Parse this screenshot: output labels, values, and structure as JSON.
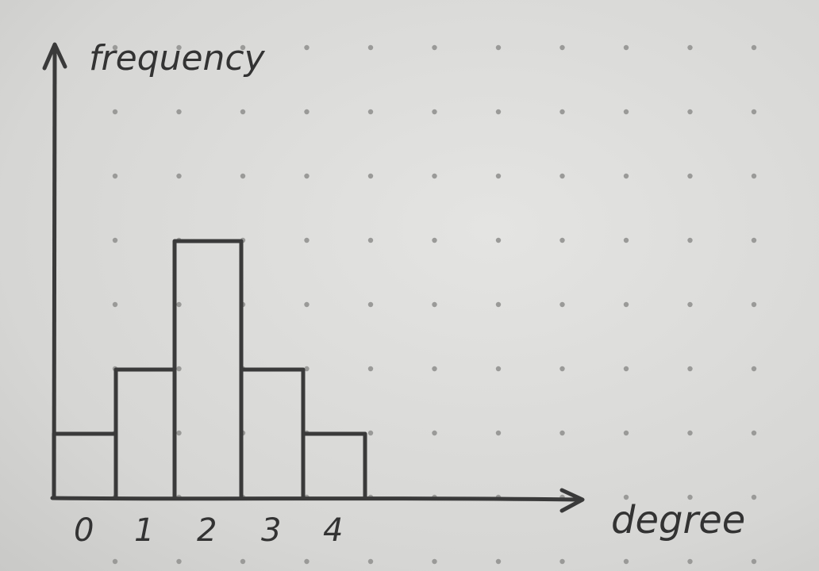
{
  "chart_data": {
    "type": "bar",
    "title": "",
    "xlabel": "degree",
    "ylabel": "frequency",
    "categories": [
      "0",
      "1",
      "2",
      "3",
      "4"
    ],
    "values": [
      1,
      2,
      4,
      2,
      1
    ],
    "ylim": [
      0,
      7
    ],
    "grid": "dotted",
    "legend": "none"
  },
  "colors": {
    "paper": "#dcdcda",
    "ink": "#3a3a3a",
    "dots": "#9a9a98"
  }
}
